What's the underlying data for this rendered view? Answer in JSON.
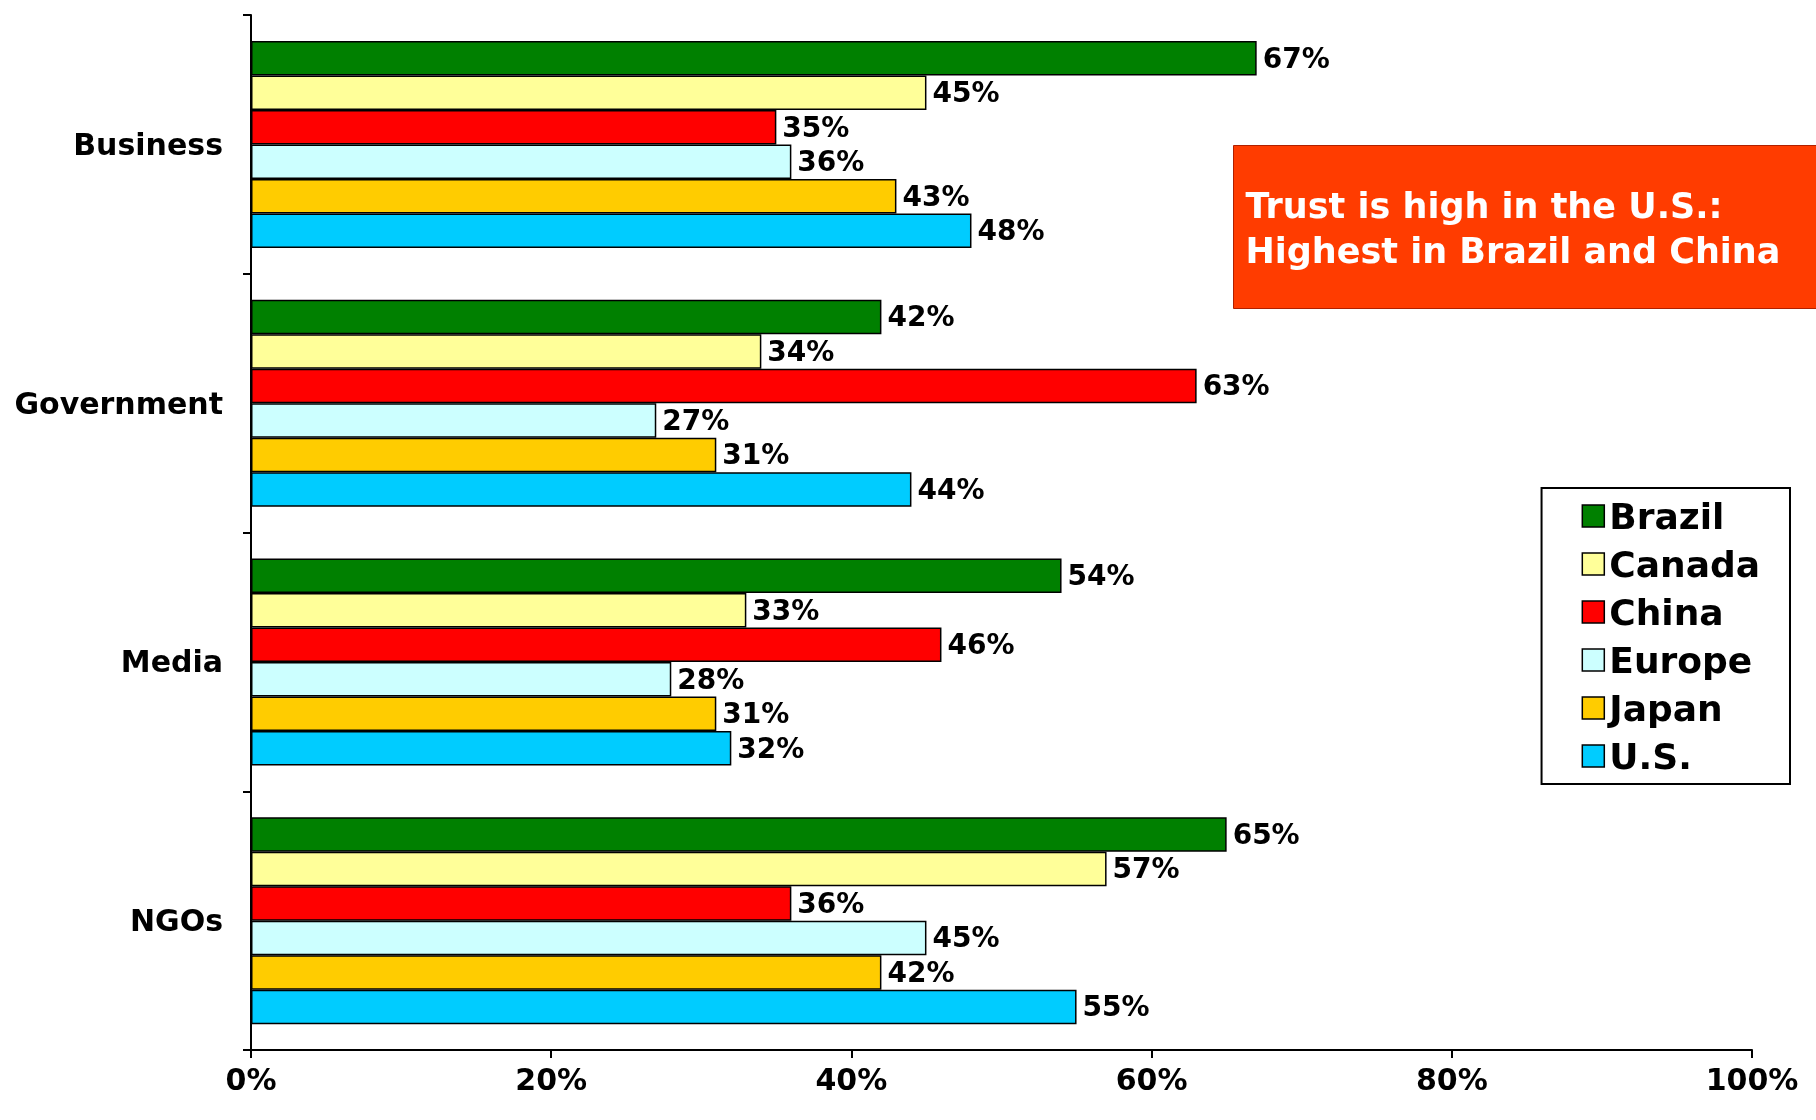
{
  "chart_data": {
    "type": "bar",
    "orientation": "horizontal",
    "categories": [
      "Business",
      "Government",
      "Media",
      "NGOs"
    ],
    "series": [
      {
        "name": "Brazil",
        "color": "#008000",
        "values": [
          67,
          42,
          54,
          65
        ],
        "value_labels": [
          "67%",
          "42%",
          "54%",
          "65%"
        ]
      },
      {
        "name": "Canada",
        "color": "#ffff99",
        "values": [
          45,
          34,
          33,
          57
        ],
        "value_labels": [
          "45%",
          "34%",
          "33%",
          "57%"
        ]
      },
      {
        "name": "China",
        "color": "#ff0000",
        "values": [
          35,
          63,
          46,
          36
        ],
        "value_labels": [
          "35%",
          "63%",
          "46%",
          "36%"
        ]
      },
      {
        "name": "Europe",
        "color": "#ccffff",
        "values": [
          36,
          27,
          28,
          45
        ],
        "value_labels": [
          "36%",
          "27%",
          "28%",
          "45%"
        ]
      },
      {
        "name": "Japan",
        "color": "#ffcc00",
        "values": [
          43,
          31,
          31,
          42
        ],
        "value_labels": [
          "43%",
          "31%",
          "31%",
          "42%"
        ]
      },
      {
        "name": "U.S.",
        "color": "#00ccff",
        "values": [
          48,
          44,
          32,
          55
        ],
        "value_labels": [
          "48%",
          "44%",
          "32%",
          "55%"
        ]
      }
    ],
    "xlim": [
      0,
      100
    ],
    "xticks": [
      {
        "value": 0,
        "label": "0%"
      },
      {
        "value": 20,
        "label": "20%"
      },
      {
        "value": 40,
        "label": "40%"
      },
      {
        "value": 60,
        "label": "60%"
      },
      {
        "value": 80,
        "label": "80%"
      },
      {
        "value": 100,
        "label": "100%"
      }
    ],
    "grid": false,
    "legend": "right",
    "annotations": [
      "Trust is high in the U.S.:\nHighest in Brazil and China"
    ]
  }
}
